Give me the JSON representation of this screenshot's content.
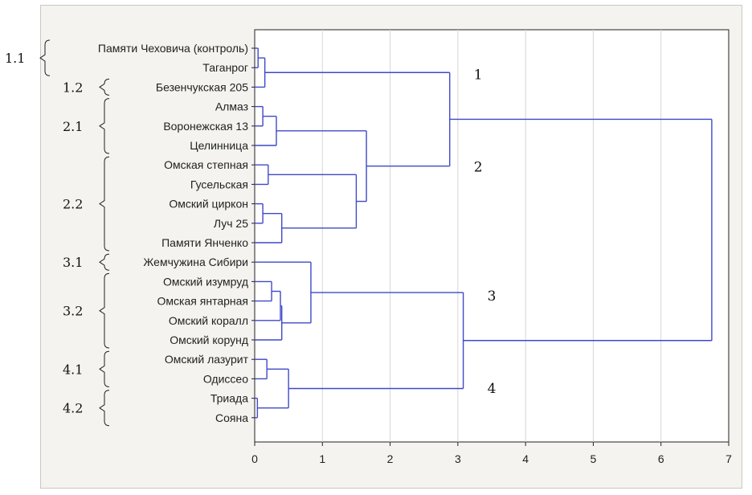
{
  "chart_data": {
    "type": "dendrogram",
    "title": "",
    "xlabel": "",
    "ylabel": "",
    "xlim": [
      0,
      7
    ],
    "x_ticks": [
      "0",
      "1",
      "2",
      "3",
      "4",
      "5",
      "6",
      "7"
    ],
    "grid": "vertical",
    "line_color": "#3f49c6",
    "leaves": [
      "Памяти Чеховича (контроль)",
      "Таганрог",
      "Безенчукская 205",
      "Алмаз",
      "Воронежская 13",
      "Целинница",
      "Омская степная",
      "Гусельская",
      "Омский циркон",
      "Луч 25",
      "Памяти Янченко",
      "Жемчужина Сибири",
      "Омский изумруд",
      "Омская янтарная",
      "Омский коралл",
      "Омский корунд",
      "Омский лазурит",
      "Одиссео",
      "Триада",
      "Сояна"
    ],
    "merges": [
      {
        "a": "L0",
        "b": "L1",
        "height": 0.05,
        "id": "m1"
      },
      {
        "a": "m1",
        "b": "L2",
        "height": 0.15,
        "id": "m2"
      },
      {
        "a": "L3",
        "b": "L4",
        "height": 0.12,
        "id": "m3"
      },
      {
        "a": "m3",
        "b": "L5",
        "height": 0.32,
        "id": "m4"
      },
      {
        "a": "L6",
        "b": "L7",
        "height": 0.2,
        "id": "m5"
      },
      {
        "a": "L8",
        "b": "L9",
        "height": 0.12,
        "id": "m6"
      },
      {
        "a": "m6",
        "b": "L10",
        "height": 0.4,
        "id": "m7"
      },
      {
        "a": "m5",
        "b": "m7",
        "height": 1.5,
        "id": "m8"
      },
      {
        "a": "m4",
        "b": "m8",
        "height": 1.65,
        "id": "m9"
      },
      {
        "a": "m2",
        "b": "m9",
        "height": 2.88,
        "id": "m10"
      },
      {
        "a": "L12",
        "b": "L13",
        "height": 0.25,
        "id": "m11"
      },
      {
        "a": "m11",
        "b": "L14",
        "height": 0.38,
        "id": "m12"
      },
      {
        "a": "m12",
        "b": "L15",
        "height": 0.4,
        "id": "m13"
      },
      {
        "a": "L11",
        "b": "m13",
        "height": 0.83,
        "id": "m14"
      },
      {
        "a": "L16",
        "b": "L17",
        "height": 0.18,
        "id": "m15"
      },
      {
        "a": "L18",
        "b": "L19",
        "height": 0.04,
        "id": "m16"
      },
      {
        "a": "m15",
        "b": "m16",
        "height": 0.5,
        "id": "m17"
      },
      {
        "a": "m14",
        "b": "m17",
        "height": 3.08,
        "id": "m18"
      },
      {
        "a": "m10",
        "b": "m18",
        "height": 6.75,
        "id": "m19"
      }
    ],
    "groups": [
      {
        "label": "1.1",
        "from": 0,
        "to": 1
      },
      {
        "label": "1.2",
        "from": 2,
        "to": 2
      },
      {
        "label": "2.1",
        "from": 3,
        "to": 5
      },
      {
        "label": "2.2",
        "from": 6,
        "to": 10
      },
      {
        "label": "3.1",
        "from": 11,
        "to": 11
      },
      {
        "label": "3.2",
        "from": 12,
        "to": 15
      },
      {
        "label": "4.1",
        "from": 16,
        "to": 17
      },
      {
        "label": "4.2",
        "from": 18,
        "to": 19
      }
    ],
    "cluster_labels": [
      {
        "label": "1",
        "node": "m10",
        "side": "above"
      },
      {
        "label": "2",
        "node": "m10",
        "side": "below"
      },
      {
        "label": "3",
        "node": "m18",
        "side": "above"
      },
      {
        "label": "4",
        "node": "m18",
        "side": "below"
      }
    ]
  }
}
